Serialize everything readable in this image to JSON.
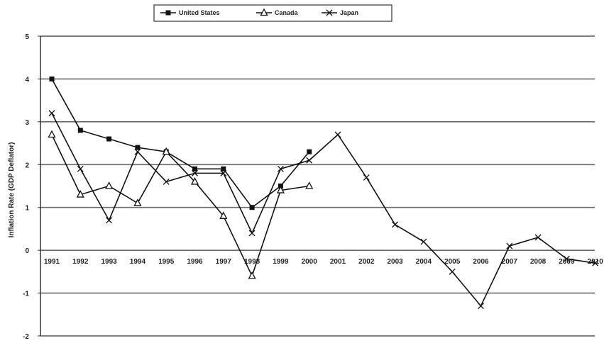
{
  "chart_data": {
    "type": "line",
    "title": "",
    "xlabel": "",
    "ylabel": "Inflation Rate (GDP Deflator)",
    "ylim": [
      -2,
      5
    ],
    "yticks": [
      "5",
      "4",
      "3",
      "2",
      "1",
      "0",
      "-1",
      "-2"
    ],
    "grid": true,
    "legend_position": "top-center",
    "categories": [
      "1991",
      "1992",
      "1993",
      "1994",
      "1995",
      "1996",
      "1997",
      "1998",
      "1999",
      "2000",
      "2001",
      "2002",
      "2003",
      "2004",
      "2005",
      "2006",
      "2007",
      "2008",
      "2009",
      "2010"
    ],
    "series": [
      {
        "name": "United States",
        "marker": "square",
        "values": [
          4.0,
          2.8,
          2.6,
          2.4,
          2.3,
          1.9,
          1.9,
          1.0,
          1.5,
          2.3,
          null,
          null,
          null,
          null,
          null,
          null,
          null,
          null,
          null,
          null
        ]
      },
      {
        "name": "Canada",
        "marker": "triangle",
        "values": [
          2.7,
          1.3,
          1.5,
          1.1,
          2.3,
          1.6,
          0.8,
          -0.6,
          1.4,
          1.5,
          null,
          null,
          null,
          null,
          null,
          null,
          null,
          null,
          null,
          null
        ]
      },
      {
        "name": "Japan",
        "marker": "x",
        "values": [
          3.2,
          1.9,
          0.7,
          2.3,
          1.6,
          1.8,
          1.8,
          0.4,
          1.9,
          2.1,
          2.7,
          1.7,
          0.6,
          0.2,
          -0.5,
          -1.3,
          0.1,
          0.3,
          -0.2,
          -0.3
        ]
      }
    ]
  }
}
